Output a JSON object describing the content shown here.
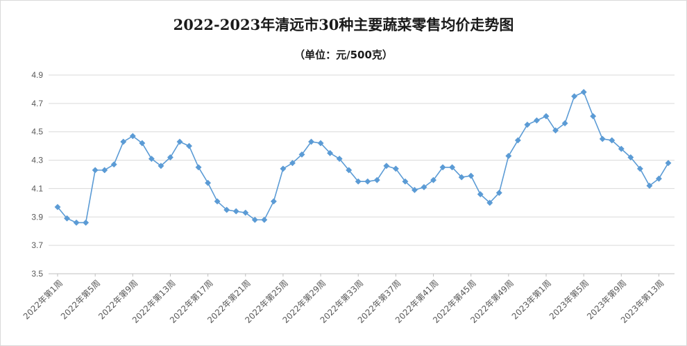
{
  "chart_data": {
    "type": "line",
    "title": "2022-2023年清远市30种主要蔬菜零售均价走势图",
    "subtitle": "（单位：元/500克）",
    "ylim": [
      3.5,
      4.9
    ],
    "yticks": [
      "3.5",
      "3.7",
      "3.9",
      "4.1",
      "4.3",
      "4.5",
      "4.7",
      "4.9"
    ],
    "grid": true,
    "line_color": "#5b9bd5",
    "x_tick_labels": [
      {
        "index": 0,
        "label": "2022年第1周"
      },
      {
        "index": 4,
        "label": "2022年第5周"
      },
      {
        "index": 8,
        "label": "2022年第9周"
      },
      {
        "index": 12,
        "label": "2022年第13周"
      },
      {
        "index": 16,
        "label": "2022年第17周"
      },
      {
        "index": 20,
        "label": "2022年第21周"
      },
      {
        "index": 24,
        "label": "2022年第25周"
      },
      {
        "index": 28,
        "label": "2022年第29周"
      },
      {
        "index": 32,
        "label": "2022年第33周"
      },
      {
        "index": 36,
        "label": "2022年第37周"
      },
      {
        "index": 40,
        "label": "2022年第41周"
      },
      {
        "index": 44,
        "label": "2022年第45周"
      },
      {
        "index": 48,
        "label": "2022年第49周"
      },
      {
        "index": 52,
        "label": "2023年第1周"
      },
      {
        "index": 56,
        "label": "2023年第5周"
      },
      {
        "index": 60,
        "label": "2023年第9周"
      },
      {
        "index": 64,
        "label": "2023年第13周"
      }
    ],
    "series": [
      {
        "values": [
          3.97,
          3.89,
          3.86,
          3.86,
          4.23,
          4.23,
          4.27,
          4.43,
          4.47,
          4.42,
          4.31,
          4.26,
          4.32,
          4.43,
          4.4,
          4.25,
          4.14,
          4.01,
          3.95,
          3.94,
          3.93,
          3.88,
          3.88,
          4.01,
          4.24,
          4.28,
          4.34,
          4.43,
          4.42,
          4.35,
          4.31,
          4.23,
          4.15,
          4.15,
          4.16,
          4.26,
          4.24,
          4.15,
          4.09,
          4.11,
          4.16,
          4.25,
          4.25,
          4.18,
          4.19,
          4.06,
          4.0,
          4.07,
          4.33,
          4.44,
          4.55,
          4.58,
          4.61,
          4.51,
          4.56,
          4.75,
          4.78,
          4.61,
          4.45,
          4.44,
          4.38,
          4.32,
          4.24,
          4.12,
          4.17,
          4.28
        ]
      }
    ]
  }
}
